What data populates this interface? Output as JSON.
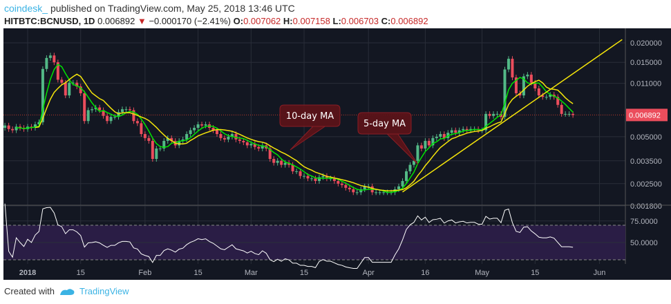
{
  "header": {
    "user": "coindesk_",
    "published": "published on TradingView.com, May 25, 2018 13:46 UTC",
    "symbol": "HITBTC:BCNUSD, 1D",
    "last": "0.006892",
    "change": "−0.000170 (−2.41%)",
    "o_label": "O:",
    "o": "0.007062",
    "h_label": "H:",
    "h": "0.007158",
    "l_label": "L:",
    "l": "0.006703",
    "c_label": "C:",
    "c": "0.006892"
  },
  "footer": {
    "created": "Created with",
    "brand": "TradingView"
  },
  "colors": {
    "up": "#53b987",
    "down": "#eb4d5c",
    "ma5": "#00e600",
    "ma10": "#f5e50a",
    "trend": "#f5e50a",
    "bg": "#131722",
    "rsi": "#ffffff",
    "rsi_band": "#2a1d45",
    "callout": "#5c1419"
  },
  "chart_data": {
    "type": "candlestick",
    "scale": "log",
    "start_date": "2017-12-25",
    "closes": [
      0.0057,
      0.0059,
      0.0056,
      0.0055,
      0.0058,
      0.0057,
      0.0056,
      0.0058,
      0.0057,
      0.006,
      0.0062,
      0.0136,
      0.016,
      0.0166,
      0.015,
      0.0116,
      0.0111,
      0.0092,
      0.0111,
      0.0111,
      0.0105,
      0.0095,
      0.0063,
      0.0074,
      0.0075,
      0.0077,
      0.0074,
      0.0068,
      0.0063,
      0.0067,
      0.0067,
      0.0072,
      0.0075,
      0.0075,
      0.0074,
      0.0063,
      0.0061,
      0.0052,
      0.0049,
      0.0047,
      0.0036,
      0.0042,
      0.0042,
      0.0047,
      0.0049,
      0.0047,
      0.0044,
      0.0047,
      0.0048,
      0.0052,
      0.0055,
      0.0057,
      0.006,
      0.0059,
      0.006,
      0.0057,
      0.0055,
      0.0052,
      0.0049,
      0.0048,
      0.005,
      0.0052,
      0.0048,
      0.0047,
      0.0046,
      0.0044,
      0.0045,
      0.0043,
      0.0042,
      0.0044,
      0.0042,
      0.0036,
      0.0034,
      0.0035,
      0.0033,
      0.0034,
      0.0033,
      0.003,
      0.003,
      0.0028,
      0.0028,
      0.0027,
      0.0027,
      0.0026,
      0.00275,
      0.0028,
      0.0027,
      0.0027,
      0.0026,
      0.0025,
      0.00245,
      0.00235,
      0.0023,
      0.0022,
      0.0022,
      0.0023,
      0.0024,
      0.0024,
      0.0022,
      0.0022,
      0.0022,
      0.0022,
      0.0022,
      0.0022,
      0.0023,
      0.0024,
      0.0026,
      0.003,
      0.0033,
      0.0035,
      0.0044,
      0.0042,
      0.0047,
      0.0044,
      0.0049,
      0.005,
      0.0052,
      0.0049,
      0.0053,
      0.0055,
      0.0053,
      0.0055,
      0.0056,
      0.0055,
      0.0056,
      0.0056,
      0.0055,
      0.0055,
      0.007,
      0.0068,
      0.007,
      0.007,
      0.0067,
      0.0135,
      0.0158,
      0.012,
      0.0095,
      0.0092,
      0.0122,
      0.0125,
      0.0111,
      0.0102,
      0.0092,
      0.009,
      0.009,
      0.0093,
      0.009,
      0.008,
      0.007,
      0.007,
      0.007,
      0.006892
    ],
    "moving_averages": [
      {
        "period": 5
      },
      {
        "period": 10
      }
    ],
    "trendline": {
      "from": [
        "2018-04-10",
        0.00221
      ],
      "to": [
        "2018-06-07",
        0.021
      ]
    },
    "annotations": [
      {
        "text": "10-day MA",
        "points_to": "10-day MA, mid-March"
      },
      {
        "text": "5-day MA",
        "points_to": "5-day MA, mid-April"
      }
    ],
    "y_ticks": [
      "0.020000",
      "0.015000",
      "0.011000",
      "0.005000",
      "0.003500",
      "0.002500",
      "0.001800"
    ],
    "y_tick_values": [
      0.02,
      0.015,
      0.011,
      0.005,
      0.0035,
      0.0025,
      0.0018
    ],
    "last_price_label": "0.006892",
    "x_ticks": [
      "2018",
      "15",
      "Feb",
      "15",
      "Mar",
      "15",
      "Apr",
      "16",
      "May",
      "15",
      "Jun"
    ],
    "x_tick_dates": [
      "2018-01-01",
      "2018-01-15",
      "2018-02-01",
      "2018-02-15",
      "2018-03-01",
      "2018-03-15",
      "2018-04-01",
      "2018-04-16",
      "2018-05-01",
      "2018-05-15",
      "2018-06-01"
    ],
    "rsi": {
      "period": 14,
      "ticks": [
        "75.0000",
        "50.0000"
      ],
      "tick_values": [
        75,
        50
      ],
      "band": [
        30,
        70
      ]
    }
  }
}
